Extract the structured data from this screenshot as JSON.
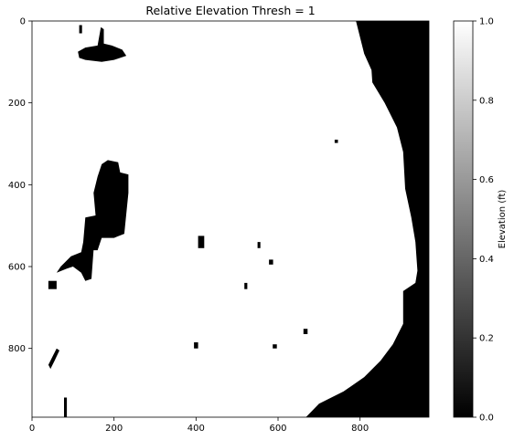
{
  "chart_data": {
    "type": "heatmap",
    "title": "Relative Elevation Thresh = 1",
    "xlabel": "",
    "ylabel": "",
    "xlim": [
      0,
      968
    ],
    "ylim": [
      968,
      0
    ],
    "xticks": [
      0,
      200,
      400,
      600,
      800
    ],
    "yticks": [
      0,
      200,
      400,
      600,
      800
    ],
    "colormap": "gray",
    "colorbar": {
      "label": "Elevation (ft)",
      "range": [
        0.0,
        1.0
      ],
      "ticks": [
        "0.0",
        "0.2",
        "0.4",
        "0.6",
        "0.8",
        "1.0"
      ]
    },
    "value_colors": {
      "0": "#000000",
      "1": "#ffffff"
    },
    "regions_value_0": [
      {
        "name": "right-black-area",
        "points": [
          [
            790,
            0
          ],
          [
            968,
            0
          ],
          [
            968,
            968
          ],
          [
            668,
            968
          ],
          [
            700,
            935
          ],
          [
            760,
            905
          ],
          [
            810,
            870
          ],
          [
            850,
            830
          ],
          [
            880,
            790
          ],
          [
            905,
            740
          ],
          [
            905,
            660
          ],
          [
            935,
            640
          ],
          [
            940,
            610
          ],
          [
            935,
            540
          ],
          [
            925,
            480
          ],
          [
            910,
            410
          ],
          [
            905,
            320
          ],
          [
            890,
            260
          ],
          [
            860,
            200
          ],
          [
            830,
            150
          ],
          [
            828,
            120
          ],
          [
            810,
            80
          ]
        ]
      },
      {
        "name": "large-left-blob",
        "points": [
          [
            185,
            340
          ],
          [
            210,
            345
          ],
          [
            215,
            370
          ],
          [
            235,
            375
          ],
          [
            235,
            420
          ],
          [
            225,
            520
          ],
          [
            200,
            530
          ],
          [
            170,
            530
          ],
          [
            160,
            560
          ],
          [
            150,
            560
          ],
          [
            145,
            630
          ],
          [
            130,
            635
          ],
          [
            120,
            615
          ],
          [
            100,
            600
          ],
          [
            85,
            605
          ],
          [
            60,
            615
          ],
          [
            70,
            600
          ],
          [
            95,
            575
          ],
          [
            120,
            565
          ],
          [
            125,
            540
          ],
          [
            130,
            480
          ],
          [
            155,
            475
          ],
          [
            150,
            420
          ],
          [
            160,
            380
          ],
          [
            170,
            350
          ]
        ]
      },
      {
        "name": "top-blob",
        "points": [
          [
            168,
            15
          ],
          [
            175,
            20
          ],
          [
            175,
            55
          ],
          [
            195,
            60
          ],
          [
            220,
            70
          ],
          [
            230,
            85
          ],
          [
            200,
            95
          ],
          [
            170,
            100
          ],
          [
            130,
            95
          ],
          [
            115,
            90
          ],
          [
            112,
            75
          ],
          [
            130,
            65
          ],
          [
            160,
            60
          ]
        ]
      },
      {
        "name": "square-left",
        "points": [
          [
            40,
            635
          ],
          [
            60,
            635
          ],
          [
            60,
            655
          ],
          [
            40,
            655
          ]
        ]
      },
      {
        "name": "spot-center",
        "points": [
          [
            405,
            525
          ],
          [
            420,
            525
          ],
          [
            420,
            555
          ],
          [
            405,
            555
          ]
        ]
      },
      {
        "name": "spot-mid-right",
        "points": [
          [
            662,
            752
          ],
          [
            672,
            752
          ],
          [
            672,
            765
          ],
          [
            662,
            765
          ]
        ]
      },
      {
        "name": "diag-lower-left",
        "points": [
          [
            60,
            800
          ],
          [
            67,
            805
          ],
          [
            55,
            830
          ],
          [
            45,
            850
          ],
          [
            40,
            840
          ],
          [
            50,
            820
          ]
        ]
      },
      {
        "name": "strip-lower-left",
        "points": [
          [
            78,
            920
          ],
          [
            85,
            920
          ],
          [
            85,
            968
          ],
          [
            78,
            968
          ]
        ]
      },
      {
        "name": "spot-lower-mid",
        "points": [
          [
            395,
            785
          ],
          [
            405,
            785
          ],
          [
            405,
            800
          ],
          [
            395,
            800
          ]
        ]
      },
      {
        "name": "spot-right",
        "points": [
          [
            578,
            583
          ],
          [
            588,
            583
          ],
          [
            588,
            595
          ],
          [
            578,
            595
          ]
        ]
      },
      {
        "name": "spot-right-2",
        "points": [
          [
            587,
            790
          ],
          [
            597,
            790
          ],
          [
            597,
            800
          ],
          [
            587,
            800
          ]
        ]
      },
      {
        "name": "spot-upper-right",
        "points": [
          [
            738,
            290
          ],
          [
            746,
            290
          ],
          [
            746,
            298
          ],
          [
            738,
            298
          ]
        ]
      },
      {
        "name": "spot-center-2",
        "points": [
          [
            518,
            640
          ],
          [
            525,
            640
          ],
          [
            525,
            655
          ],
          [
            518,
            655
          ]
        ]
      },
      {
        "name": "spot-center-3",
        "points": [
          [
            550,
            540
          ],
          [
            557,
            540
          ],
          [
            557,
            555
          ],
          [
            550,
            555
          ]
        ]
      },
      {
        "name": "sliver-left-top",
        "points": [
          [
            115,
            10
          ],
          [
            122,
            10
          ],
          [
            122,
            30
          ],
          [
            115,
            30
          ]
        ]
      }
    ]
  }
}
